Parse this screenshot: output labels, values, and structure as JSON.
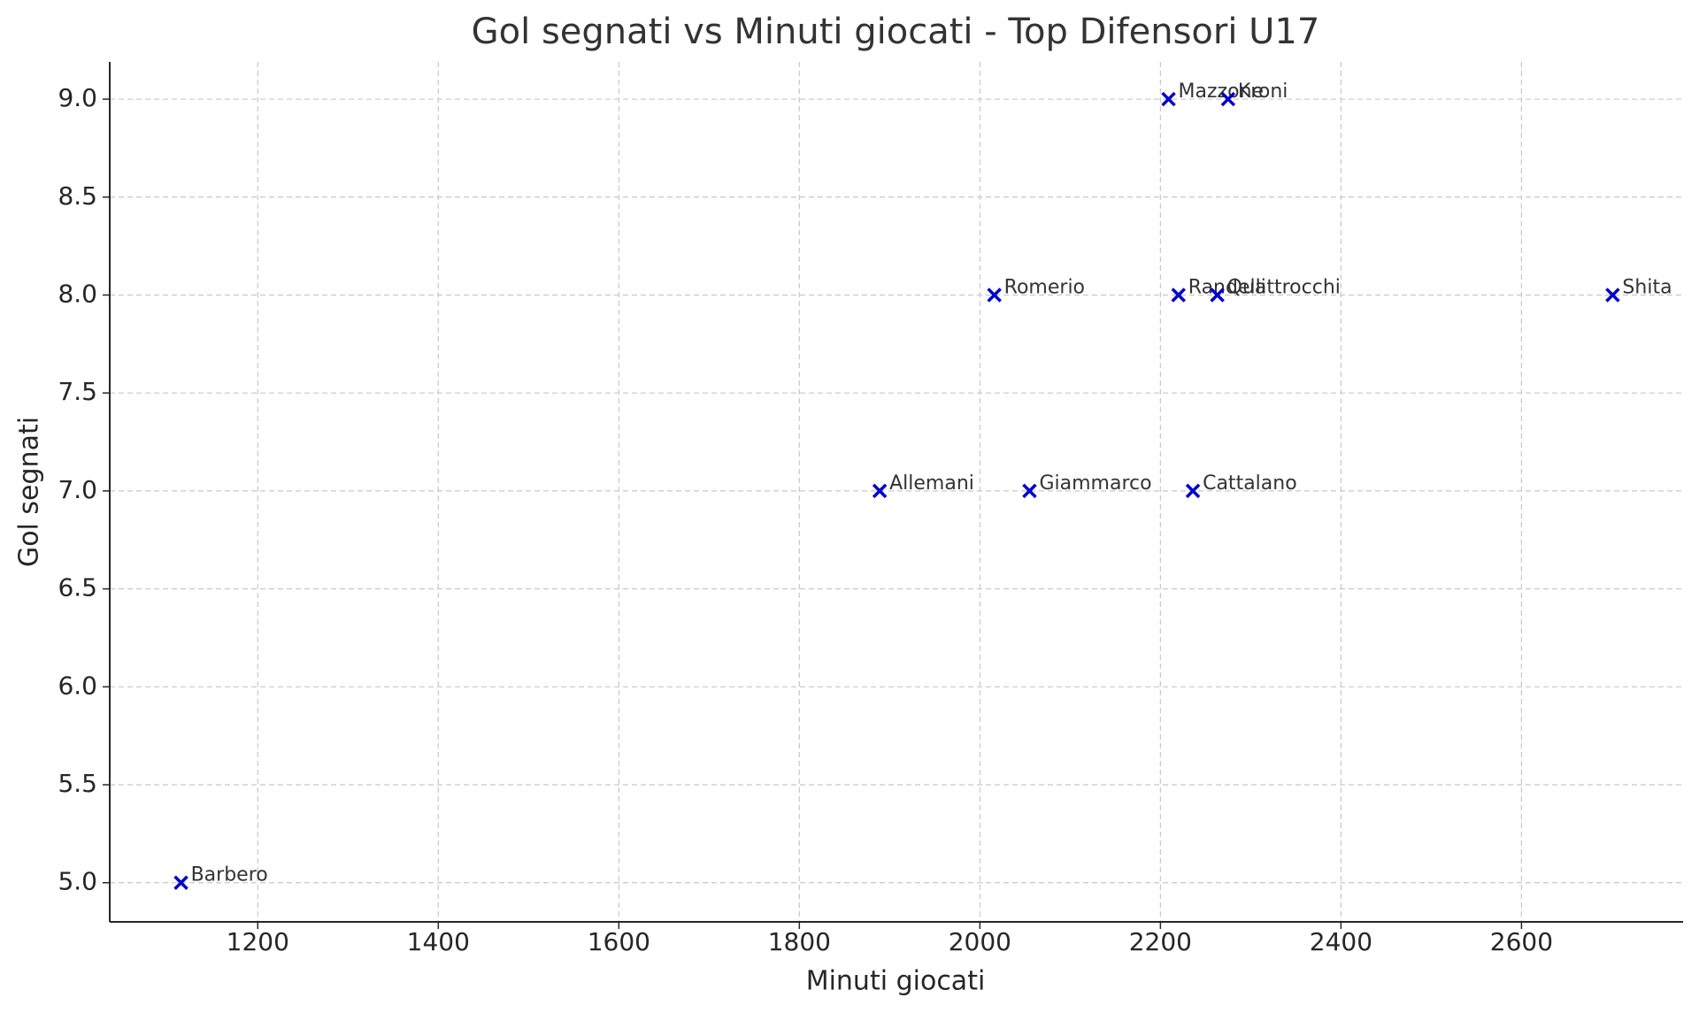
{
  "chart_data": {
    "type": "scatter",
    "title": "Gol segnati vs Minuti giocati - Top Difensori U17",
    "xlabel": "Minuti giocati",
    "ylabel": "Gol segnati",
    "labels": [
      "Barbero",
      "Allemani",
      "Romerio",
      "Giammarco",
      "Mazzone",
      "Kroni",
      "Randelli",
      "Quattrocchi",
      "Cattalano",
      "Shita"
    ],
    "x": [
      1115,
      1889,
      2016,
      2055,
      2209,
      2275,
      2220,
      2263,
      2236,
      2701
    ],
    "values": [
      5,
      7,
      8,
      7,
      9,
      9,
      8,
      8,
      7,
      8
    ],
    "color": "#0000cc",
    "marker": "x",
    "xlim": [
      1036,
      2779
    ],
    "ylim": [
      4.8,
      9.19
    ],
    "xticks": [
      1200,
      1400,
      1600,
      1800,
      2000,
      2200,
      2400,
      2600
    ],
    "yticks": [
      {
        "value": 5,
        "label": "5.0"
      },
      {
        "value": 5.5,
        "label": "5.5"
      },
      {
        "value": 6,
        "label": "6.0"
      },
      {
        "value": 6.5,
        "label": "6.5"
      },
      {
        "value": 7,
        "label": "7.0"
      },
      {
        "value": 7.5,
        "label": "7.5"
      },
      {
        "value": 8,
        "label": "8.0"
      },
      {
        "value": 8.5,
        "label": "8.5"
      },
      {
        "value": 9,
        "label": "9.0"
      }
    ],
    "grid": true
  }
}
